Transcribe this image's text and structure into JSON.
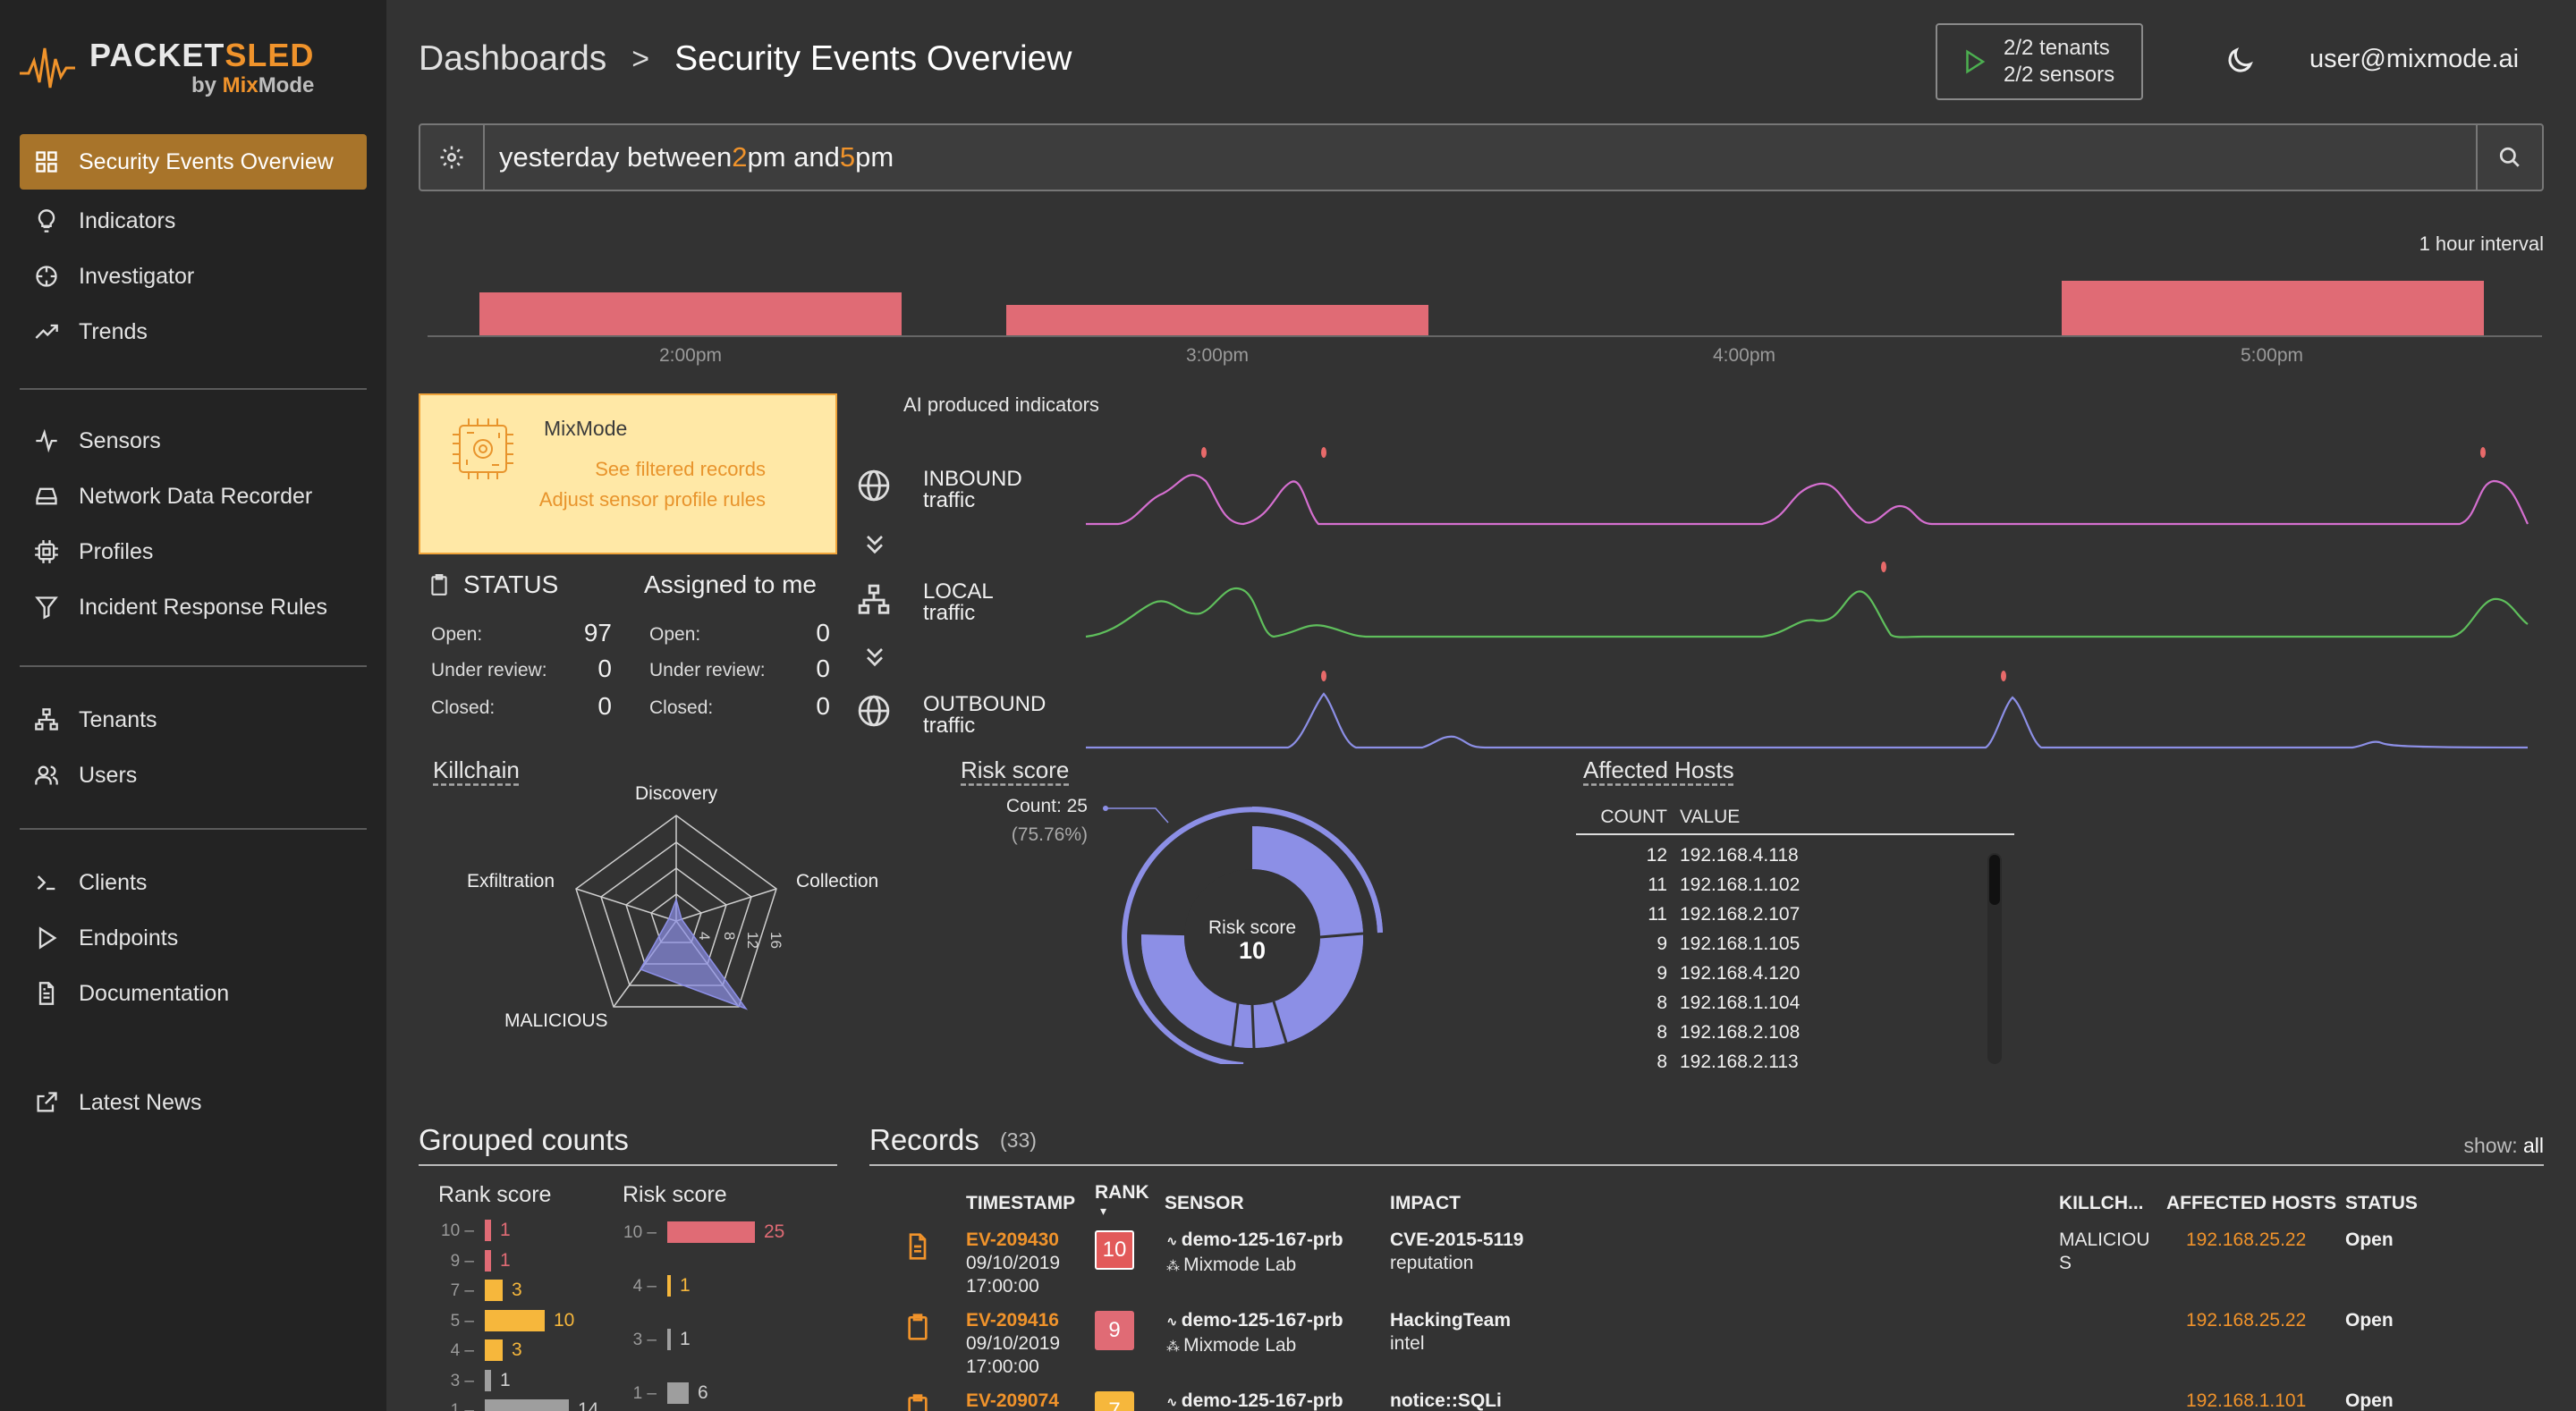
{
  "logo": {
    "title_a": "PACKET",
    "title_b": "SLED",
    "by_a": "by ",
    "by_b": "Mix",
    "by_c": "Mode"
  },
  "sidebar": {
    "items": [
      {
        "label": "Security Events Overview",
        "icon": "grid-icon"
      },
      {
        "label": "Indicators",
        "icon": "lightbulb-icon"
      },
      {
        "label": "Investigator",
        "icon": "crosshair-icon"
      },
      {
        "label": "Trends",
        "icon": "trend-icon"
      },
      {
        "label": "Sensors",
        "icon": "pulse-icon"
      },
      {
        "label": "Network Data Recorder",
        "icon": "drive-icon"
      },
      {
        "label": "Profiles",
        "icon": "chip-icon"
      },
      {
        "label": "Incident Response Rules",
        "icon": "filter-icon"
      },
      {
        "label": "Tenants",
        "icon": "network-icon"
      },
      {
        "label": "Users",
        "icon": "users-icon"
      },
      {
        "label": "Clients",
        "icon": "terminal-icon"
      },
      {
        "label": "Endpoints",
        "icon": "play-icon"
      },
      {
        "label": "Documentation",
        "icon": "document-icon"
      },
      {
        "label": "Latest News",
        "icon": "external-link-icon"
      }
    ]
  },
  "header": {
    "breadcrumb_root": "Dashboards",
    "breadcrumb_sep": ">",
    "breadcrumb_current": "Security Events Overview",
    "tenants": "2/2 tenants",
    "sensors": "2/2 sensors",
    "user": "user@mixmode.ai"
  },
  "search": {
    "q1": "yesterday between ",
    "q2": "2",
    "q3": "pm and ",
    "q4": "5",
    "q5": "pm"
  },
  "histogram": {
    "interval": "1 hour interval",
    "ticks": [
      "2:00pm",
      "3:00pm",
      "4:00pm",
      "5:00pm"
    ]
  },
  "mixmode": {
    "title": "MixMode",
    "link1": "See filtered records",
    "link2": "Adjust sensor profile rules"
  },
  "status": {
    "title": "STATUS",
    "assigned_title": "Assigned to me",
    "rows": [
      {
        "label": "Open:",
        "value": "97",
        "assigned_label": "Open:",
        "assigned": "0"
      },
      {
        "label": "Under review:",
        "value": "0",
        "assigned_label": "Under review:",
        "assigned": "0"
      },
      {
        "label": "Closed:",
        "value": "0",
        "assigned_label": "Closed:",
        "assigned": "0"
      }
    ]
  },
  "traffic": {
    "title": "AI produced indicators",
    "rows": [
      {
        "line1": "INBOUND",
        "line2": "traffic",
        "color": "#d56fd0"
      },
      {
        "line1": "LOCAL",
        "line2": "traffic",
        "color": "#5fbf5c"
      },
      {
        "line1": "OUTBOUND",
        "line2": "traffic",
        "color": "#8c8fe6"
      }
    ]
  },
  "killchain": {
    "title": "Killchain",
    "axes": [
      "Discovery",
      "Collection",
      "MALICIOUS",
      "Exfiltration"
    ],
    "ticks": [
      "4",
      "8",
      "12",
      "16"
    ]
  },
  "risk": {
    "title": "Risk score",
    "count_label": "Count: 25",
    "count_pct": "(75.76%)",
    "center_label": "Risk score",
    "center_value": "10"
  },
  "affected_hosts": {
    "title": "Affected Hosts",
    "col_count": "COUNT",
    "col_value": "VALUE",
    "rows": [
      {
        "count": "12",
        "value": "192.168.4.118"
      },
      {
        "count": "11",
        "value": "192.168.1.102"
      },
      {
        "count": "11",
        "value": "192.168.2.107"
      },
      {
        "count": "9",
        "value": "192.168.1.105"
      },
      {
        "count": "9",
        "value": "192.168.4.120"
      },
      {
        "count": "8",
        "value": "192.168.1.104"
      },
      {
        "count": "8",
        "value": "192.168.2.108"
      },
      {
        "count": "8",
        "value": "192.168.2.113"
      }
    ]
  },
  "grouped": {
    "title": "Grouped counts",
    "rank_title": "Rank score",
    "risk_title": "Risk score",
    "rank": [
      {
        "label": "10",
        "value": "1",
        "color": "#e06b75"
      },
      {
        "label": "9",
        "value": "1",
        "color": "#e06b75"
      },
      {
        "label": "7",
        "value": "3",
        "color": "#f6b73c"
      },
      {
        "label": "5",
        "value": "10",
        "color": "#f6b73c"
      },
      {
        "label": "4",
        "value": "3",
        "color": "#f6b73c"
      },
      {
        "label": "3",
        "value": "1",
        "color": "#9e9e9e"
      },
      {
        "label": "1",
        "value": "14",
        "color": "#9e9e9e"
      }
    ],
    "risk": [
      {
        "label": "10",
        "value": "25",
        "color": "#e06b75"
      },
      {
        "label": "4",
        "value": "1",
        "color": "#f6b73c"
      },
      {
        "label": "3",
        "value": "1",
        "color": "#9e9e9e"
      },
      {
        "label": "1",
        "value": "6",
        "color": "#9e9e9e"
      }
    ]
  },
  "records": {
    "title": "Records",
    "count": "(33)",
    "show_label": "show:",
    "show_value": "all",
    "columns": {
      "timestamp": "TIMESTAMP",
      "rank": "RANK",
      "sensor": "SENSOR",
      "impact": "IMPACT",
      "killchain": "KILLCH...",
      "hosts": "AFFECTED HOSTS",
      "status": "STATUS"
    },
    "rows": [
      {
        "id": "EV-209430",
        "date": "09/10/2019",
        "time": "17:00:00",
        "rank": "10",
        "rank_color": "#e25a5a",
        "sensor": "demo-125-167-prb",
        "lab": "Mixmode Lab",
        "impact": "CVE-2015-5119",
        "impact2": "reputation",
        "kc1": "MALICIOU",
        "kc2": "S",
        "host": "192.168.25.22",
        "status": "Open"
      },
      {
        "id": "EV-209416",
        "date": "09/10/2019",
        "time": "17:00:00",
        "rank": "9",
        "rank_color": "#e06b75",
        "sensor": "demo-125-167-prb",
        "lab": "Mixmode Lab",
        "impact": "HackingTeam",
        "impact2": "intel",
        "kc1": "",
        "kc2": "",
        "host": "192.168.25.22",
        "status": "Open"
      },
      {
        "id": "EV-209074",
        "date": "",
        "time": "",
        "rank": "7",
        "rank_color": "#f6b73c",
        "sensor": "demo-125-167-prb",
        "lab": "",
        "impact": "notice::SQLi",
        "impact2": "",
        "kc1": "",
        "kc2": "",
        "host": "192.168.1.101",
        "status": "Open"
      }
    ]
  },
  "colors": {
    "accent": "#f0932b",
    "active_nav": "#a8742a",
    "bar": "#e06b75",
    "donut": "#8c8fe6"
  }
}
